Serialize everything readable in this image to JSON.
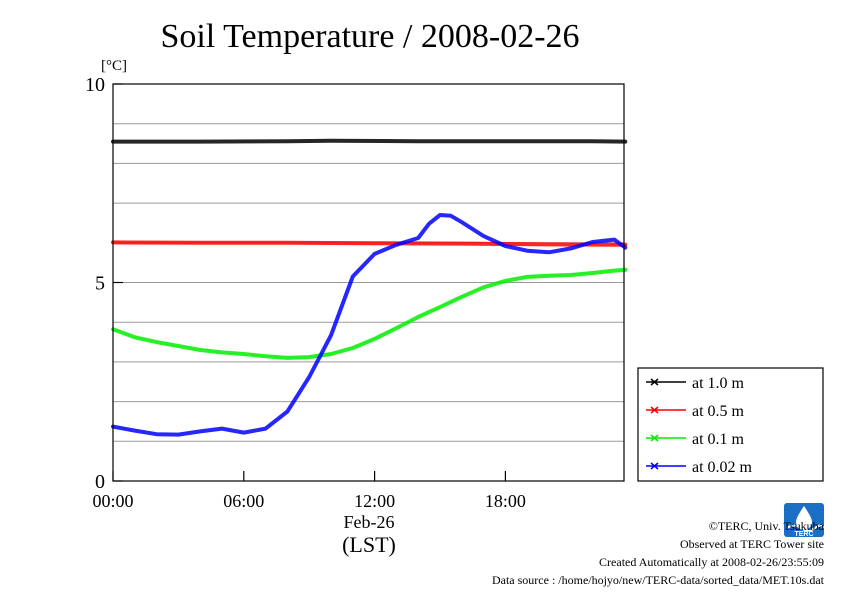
{
  "chart_data": {
    "type": "line",
    "title": "Soil Temperature / 2008-02-26",
    "ylabel": "[°C]",
    "xlabel": "(LST)",
    "x_date_label": "Feb-26",
    "xlim_hours": [
      0,
      23.5
    ],
    "ylim": [
      0,
      10
    ],
    "x_ticks": [
      {
        "hour": 0,
        "label": "00:00"
      },
      {
        "hour": 6,
        "label": "06:00"
      },
      {
        "hour": 12,
        "label": "12:00"
      },
      {
        "hour": 18,
        "label": "18:00"
      }
    ],
    "y_ticks": [
      {
        "value": 0,
        "label": "0"
      },
      {
        "value": 5,
        "label": "5"
      },
      {
        "value": 10,
        "label": "10"
      }
    ],
    "grid": {
      "horizontal_every": 1,
      "vertical": false
    },
    "legend_position": "right",
    "series": [
      {
        "name": "at 1.0 m",
        "color": "#000000",
        "x": [
          0,
          4,
          8,
          10,
          14,
          18,
          22,
          23.5
        ],
        "y": [
          8.55,
          8.55,
          8.56,
          8.57,
          8.56,
          8.56,
          8.56,
          8.55
        ]
      },
      {
        "name": "at 0.5 m",
        "color": "#ff0000",
        "x": [
          0,
          4,
          8,
          12,
          16,
          20,
          23.5
        ],
        "y": [
          6.01,
          6.0,
          6.0,
          5.99,
          5.98,
          5.96,
          5.95
        ]
      },
      {
        "name": "at 0.1 m",
        "color": "#00ee00",
        "x": [
          0,
          1,
          2,
          3,
          4,
          5,
          6,
          7,
          8,
          9,
          10,
          11,
          12,
          13,
          14,
          15,
          16,
          17,
          18,
          19,
          20,
          21,
          22,
          23,
          23.5
        ],
        "y": [
          3.82,
          3.62,
          3.5,
          3.4,
          3.3,
          3.24,
          3.2,
          3.14,
          3.1,
          3.12,
          3.2,
          3.35,
          3.58,
          3.85,
          4.13,
          4.38,
          4.64,
          4.88,
          5.04,
          5.14,
          5.17,
          5.19,
          5.24,
          5.3,
          5.32
        ]
      },
      {
        "name": "at 0.02 m",
        "color": "#0000ff",
        "x": [
          0,
          1,
          2,
          3,
          4,
          5,
          6,
          7,
          8,
          9,
          10,
          11,
          12,
          13,
          14,
          14.5,
          15,
          15.5,
          16,
          17,
          18,
          19,
          20,
          21,
          22,
          23,
          23.5
        ],
        "y": [
          1.37,
          1.27,
          1.18,
          1.17,
          1.25,
          1.32,
          1.22,
          1.32,
          1.75,
          2.62,
          3.67,
          5.15,
          5.72,
          5.95,
          6.12,
          6.48,
          6.7,
          6.68,
          6.52,
          6.17,
          5.92,
          5.8,
          5.76,
          5.86,
          6.02,
          6.08,
          5.88
        ]
      }
    ]
  },
  "footer": {
    "copyright": "©TERC, Univ. Tsukuba",
    "site": "Observed at TERC Tower site",
    "created": "Created Automatically at 2008-02-26/23:55:09",
    "source": "Data source : /home/hojyo/new/TERC-data/sorted_data/MET.10s.dat"
  },
  "logo": {
    "name": "terc-logo",
    "text": "TERC",
    "color": "#1a6fc4"
  }
}
